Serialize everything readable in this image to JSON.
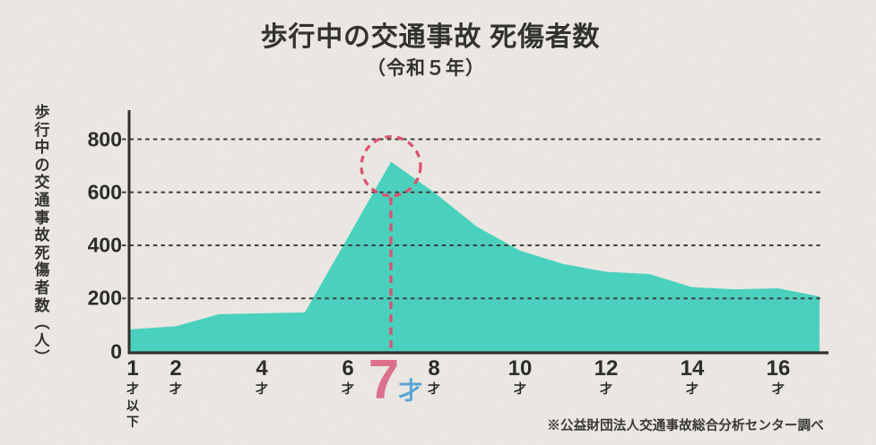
{
  "page": {
    "background_color": "#f2f0ea",
    "text_color": "#2e2d2b"
  },
  "header": {
    "title": "歩行中の交通事故 死傷者数",
    "subtitle": "（令和５年）"
  },
  "footer": {
    "source_note": "※公益財団法人交通事故総合分析センター調べ"
  },
  "chart_data": {
    "type": "area",
    "title": "歩行中の交通事故 死傷者数",
    "subtitle": "（令和５年）",
    "xlabel": "",
    "ylabel": "歩行中の交通事故死傷者数（人）",
    "x": [
      1,
      2,
      3,
      4,
      5,
      6,
      7,
      8,
      9,
      10,
      11,
      12,
      13,
      14,
      15,
      16,
      17
    ],
    "values": [
      83,
      95,
      140,
      144,
      147,
      430,
      715,
      600,
      470,
      380,
      330,
      300,
      292,
      242,
      234,
      238,
      207
    ],
    "xlim": [
      1,
      17
    ],
    "ylim": [
      0,
      905
    ],
    "yticks": [
      0,
      200,
      400,
      600,
      800
    ],
    "x_ticks": [
      {
        "age": 1,
        "label": "1",
        "suffix_lines": [
          "才",
          "以",
          "下"
        ]
      },
      {
        "age": 2,
        "label": "2",
        "suffix_lines": [
          "才"
        ]
      },
      {
        "age": 4,
        "label": "4",
        "suffix_lines": [
          "才"
        ]
      },
      {
        "age": 6,
        "label": "6",
        "suffix_lines": [
          "才"
        ]
      },
      {
        "age": 8,
        "label": "8",
        "suffix_lines": [
          "才"
        ]
      },
      {
        "age": 10,
        "label": "10",
        "suffix_lines": [
          "才"
        ]
      },
      {
        "age": 12,
        "label": "12",
        "suffix_lines": [
          "才"
        ]
      },
      {
        "age": 14,
        "label": "14",
        "suffix_lines": [
          "才"
        ]
      },
      {
        "age": 16,
        "label": "16",
        "suffix_lines": [
          "才"
        ]
      }
    ],
    "grid": "horizontal-dashed",
    "legend": "none",
    "colors": {
      "area_fill": "#46d8c4",
      "axis": "#2d2c2a",
      "gridline": "#3c3b38",
      "highlight_circle": "#e4506f",
      "highlight_line": "#d95574",
      "highlight_number": "#e2718f",
      "highlight_suffix": "#58a9db"
    },
    "annotation": {
      "age": 7,
      "peak_value": 715,
      "label_number": "7",
      "label_suffix": "才",
      "marker": "dashed-circle-with-dashed-drop-line"
    }
  }
}
